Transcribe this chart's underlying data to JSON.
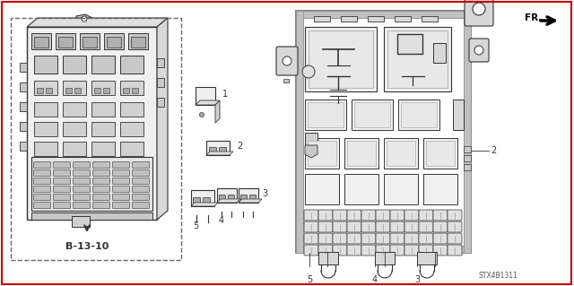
{
  "bg_color": "#ffffff",
  "fig_width": 6.4,
  "fig_height": 3.19,
  "dpi": 100,
  "label_b1310": "B-13-10",
  "label_stx": "STX4B1311",
  "label_fr": "FR.",
  "line_color": "#333333",
  "gray_fill": "#c8c8c8",
  "light_fill": "#e8e8e8",
  "border_red": "#cc0000",
  "dashed_color": "#666666"
}
